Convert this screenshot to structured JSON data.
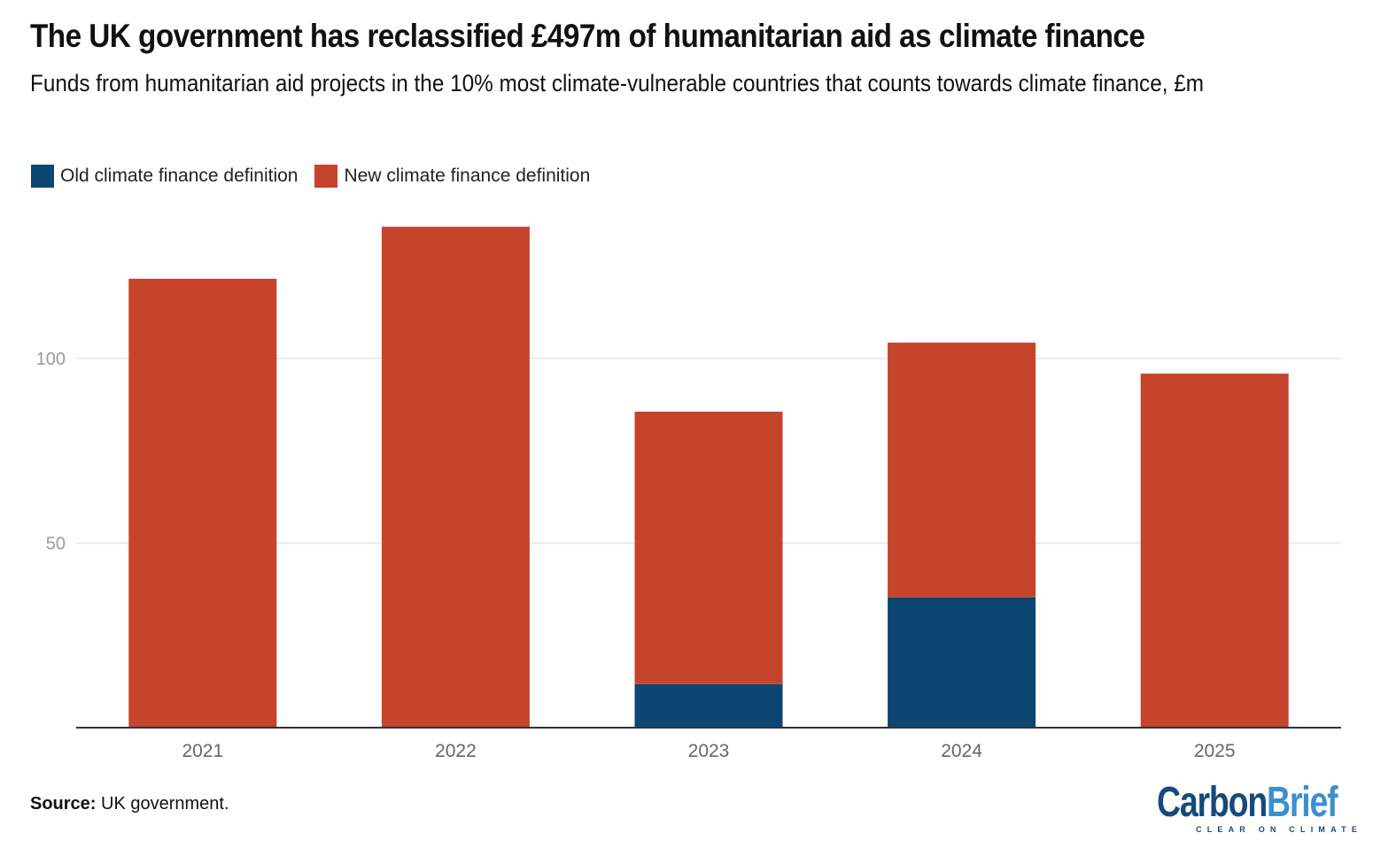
{
  "title": "The UK government has reclassified £497m of humanitarian aid as climate finance",
  "subtitle": "Funds from humanitarian aid projects in the 10% most climate-vulnerable countries that counts towards climate finance, £m",
  "legend": [
    {
      "label": "Old climate finance definition",
      "color": "#0d4672"
    },
    {
      "label": "New climate finance definition",
      "color": "#c6432c"
    }
  ],
  "source": {
    "label": "Source:",
    "text": "UK government."
  },
  "logo": {
    "carbon": "Carbon",
    "brief": "Brief",
    "tagline": "CLEAR ON CLIMATE"
  },
  "chart_data": {
    "type": "bar",
    "stacked": true,
    "title": "The UK government has reclassified £497m of humanitarian aid as climate finance",
    "subtitle": "Funds from humanitarian aid projects in the 10% most climate-vulnerable countries that counts towards climate finance, £m",
    "xlabel": "",
    "ylabel": "£m",
    "categories": [
      "2021",
      "2022",
      "2023",
      "2024",
      "2025"
    ],
    "series": [
      {
        "name": "Old climate finance definition",
        "color": "#0d4672",
        "values": [
          0,
          0,
          11.8,
          35.3,
          0
        ]
      },
      {
        "name": "New climate finance definition",
        "color": "#c6432c",
        "values": [
          121.6,
          135.7,
          73.8,
          69.0,
          95.9
        ]
      }
    ],
    "yticks": [
      50,
      100
    ],
    "ylim": [
      0,
      140
    ],
    "grid": true,
    "legend_position": "top-left"
  }
}
